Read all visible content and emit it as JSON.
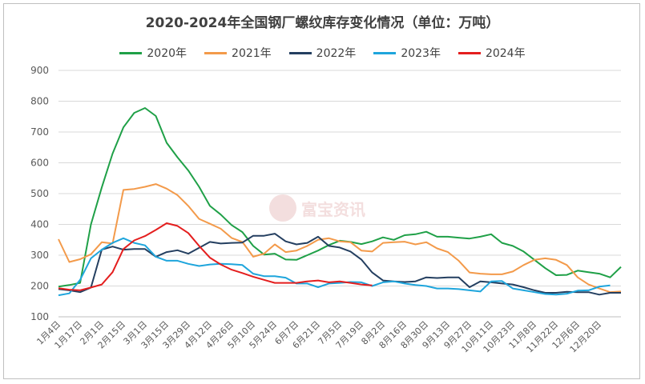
{
  "chart_data": {
    "type": "line",
    "title": "2020-2024年全国钢厂螺纹库存变化情况（单位：万吨）",
    "xlabel": "",
    "ylabel": "",
    "ylim": [
      100,
      900
    ],
    "yticks": [
      100,
      200,
      300,
      400,
      500,
      600,
      700,
      800,
      900
    ],
    "x_tick_labels": [
      "1月4日",
      "1月17日",
      "2月1日",
      "2月15日",
      "3月1日",
      "3月15日",
      "3月29日",
      "4月12日",
      "4月26日",
      "5月10日",
      "5月24日",
      "6月7日",
      "6月21日",
      "7月5日",
      "7月19日",
      "8月2日",
      "8月16日",
      "8月30日",
      "9月13日",
      "9月27日",
      "10月11日",
      "10月23日",
      "11月8日",
      "11月22日",
      "12月6日",
      "12月20日"
    ],
    "grid": true,
    "legend_position": "top",
    "series": [
      {
        "name": "2020年",
        "color": "#1fa047",
        "values": [
          198,
          203,
          210,
          400,
          520,
          630,
          715,
          762,
          778,
          752,
          665,
          618,
          575,
          522,
          460,
          432,
          398,
          375,
          330,
          302,
          305,
          286,
          285,
          300,
          315,
          333,
          347,
          343,
          336,
          345,
          358,
          350,
          365,
          368,
          376,
          360,
          360,
          357,
          354,
          360,
          368,
          340,
          330,
          312,
          285,
          258,
          235,
          236,
          250,
          245,
          240,
          228,
          262
        ]
      },
      {
        "name": "2021年",
        "color": "#f39a4a",
        "values": [
          352,
          278,
          287,
          303,
          342,
          338,
          512,
          515,
          522,
          531,
          516,
          495,
          460,
          418,
          402,
          386,
          356,
          343,
          295,
          305,
          335,
          310,
          315,
          330,
          350,
          355,
          345,
          342,
          315,
          312,
          340,
          342,
          344,
          335,
          342,
          322,
          310,
          282,
          244,
          240,
          238,
          238,
          247,
          268,
          285,
          290,
          285,
          268,
          228,
          205,
          192,
          180,
          182
        ]
      },
      {
        "name": "2022年",
        "color": "#243f60",
        "values": [
          190,
          186,
          180,
          195,
          318,
          328,
          318,
          320,
          320,
          295,
          310,
          316,
          305,
          324,
          343,
          338,
          340,
          341,
          363,
          363,
          370,
          345,
          335,
          340,
          360,
          330,
          325,
          312,
          286,
          244,
          218,
          215,
          213,
          215,
          228,
          226,
          228,
          228,
          196,
          215,
          212,
          208,
          205,
          196,
          186,
          178,
          178,
          181,
          180,
          180,
          172,
          178,
          178
        ]
      },
      {
        "name": "2023年",
        "color": "#1ea5dc",
        "values": [
          170,
          176,
          220,
          290,
          318,
          340,
          355,
          340,
          332,
          295,
          282,
          282,
          272,
          265,
          270,
          272,
          271,
          268,
          240,
          232,
          232,
          227,
          208,
          208,
          196,
          208,
          210,
          213,
          212,
          200,
          212,
          215,
          208,
          203,
          200,
          192,
          192,
          190,
          186,
          182,
          215,
          216,
          192,
          186,
          180,
          174,
          172,
          175,
          185,
          186,
          198,
          202,
          null
        ]
      },
      {
        "name": "2024年",
        "color": "#e41e1e",
        "values": [
          193,
          188,
          186,
          195,
          205,
          245,
          320,
          348,
          362,
          382,
          404,
          395,
          372,
          330,
          292,
          270,
          253,
          242,
          230,
          220,
          210,
          210,
          210,
          215,
          218,
          212,
          215,
          210,
          205,
          202,
          null,
          null,
          null,
          null,
          null,
          null,
          null,
          null,
          null,
          null,
          null,
          null,
          null,
          null,
          null,
          null,
          null,
          null,
          null,
          null,
          null,
          null,
          null
        ]
      }
    ]
  },
  "watermark_text": "富宝资讯"
}
